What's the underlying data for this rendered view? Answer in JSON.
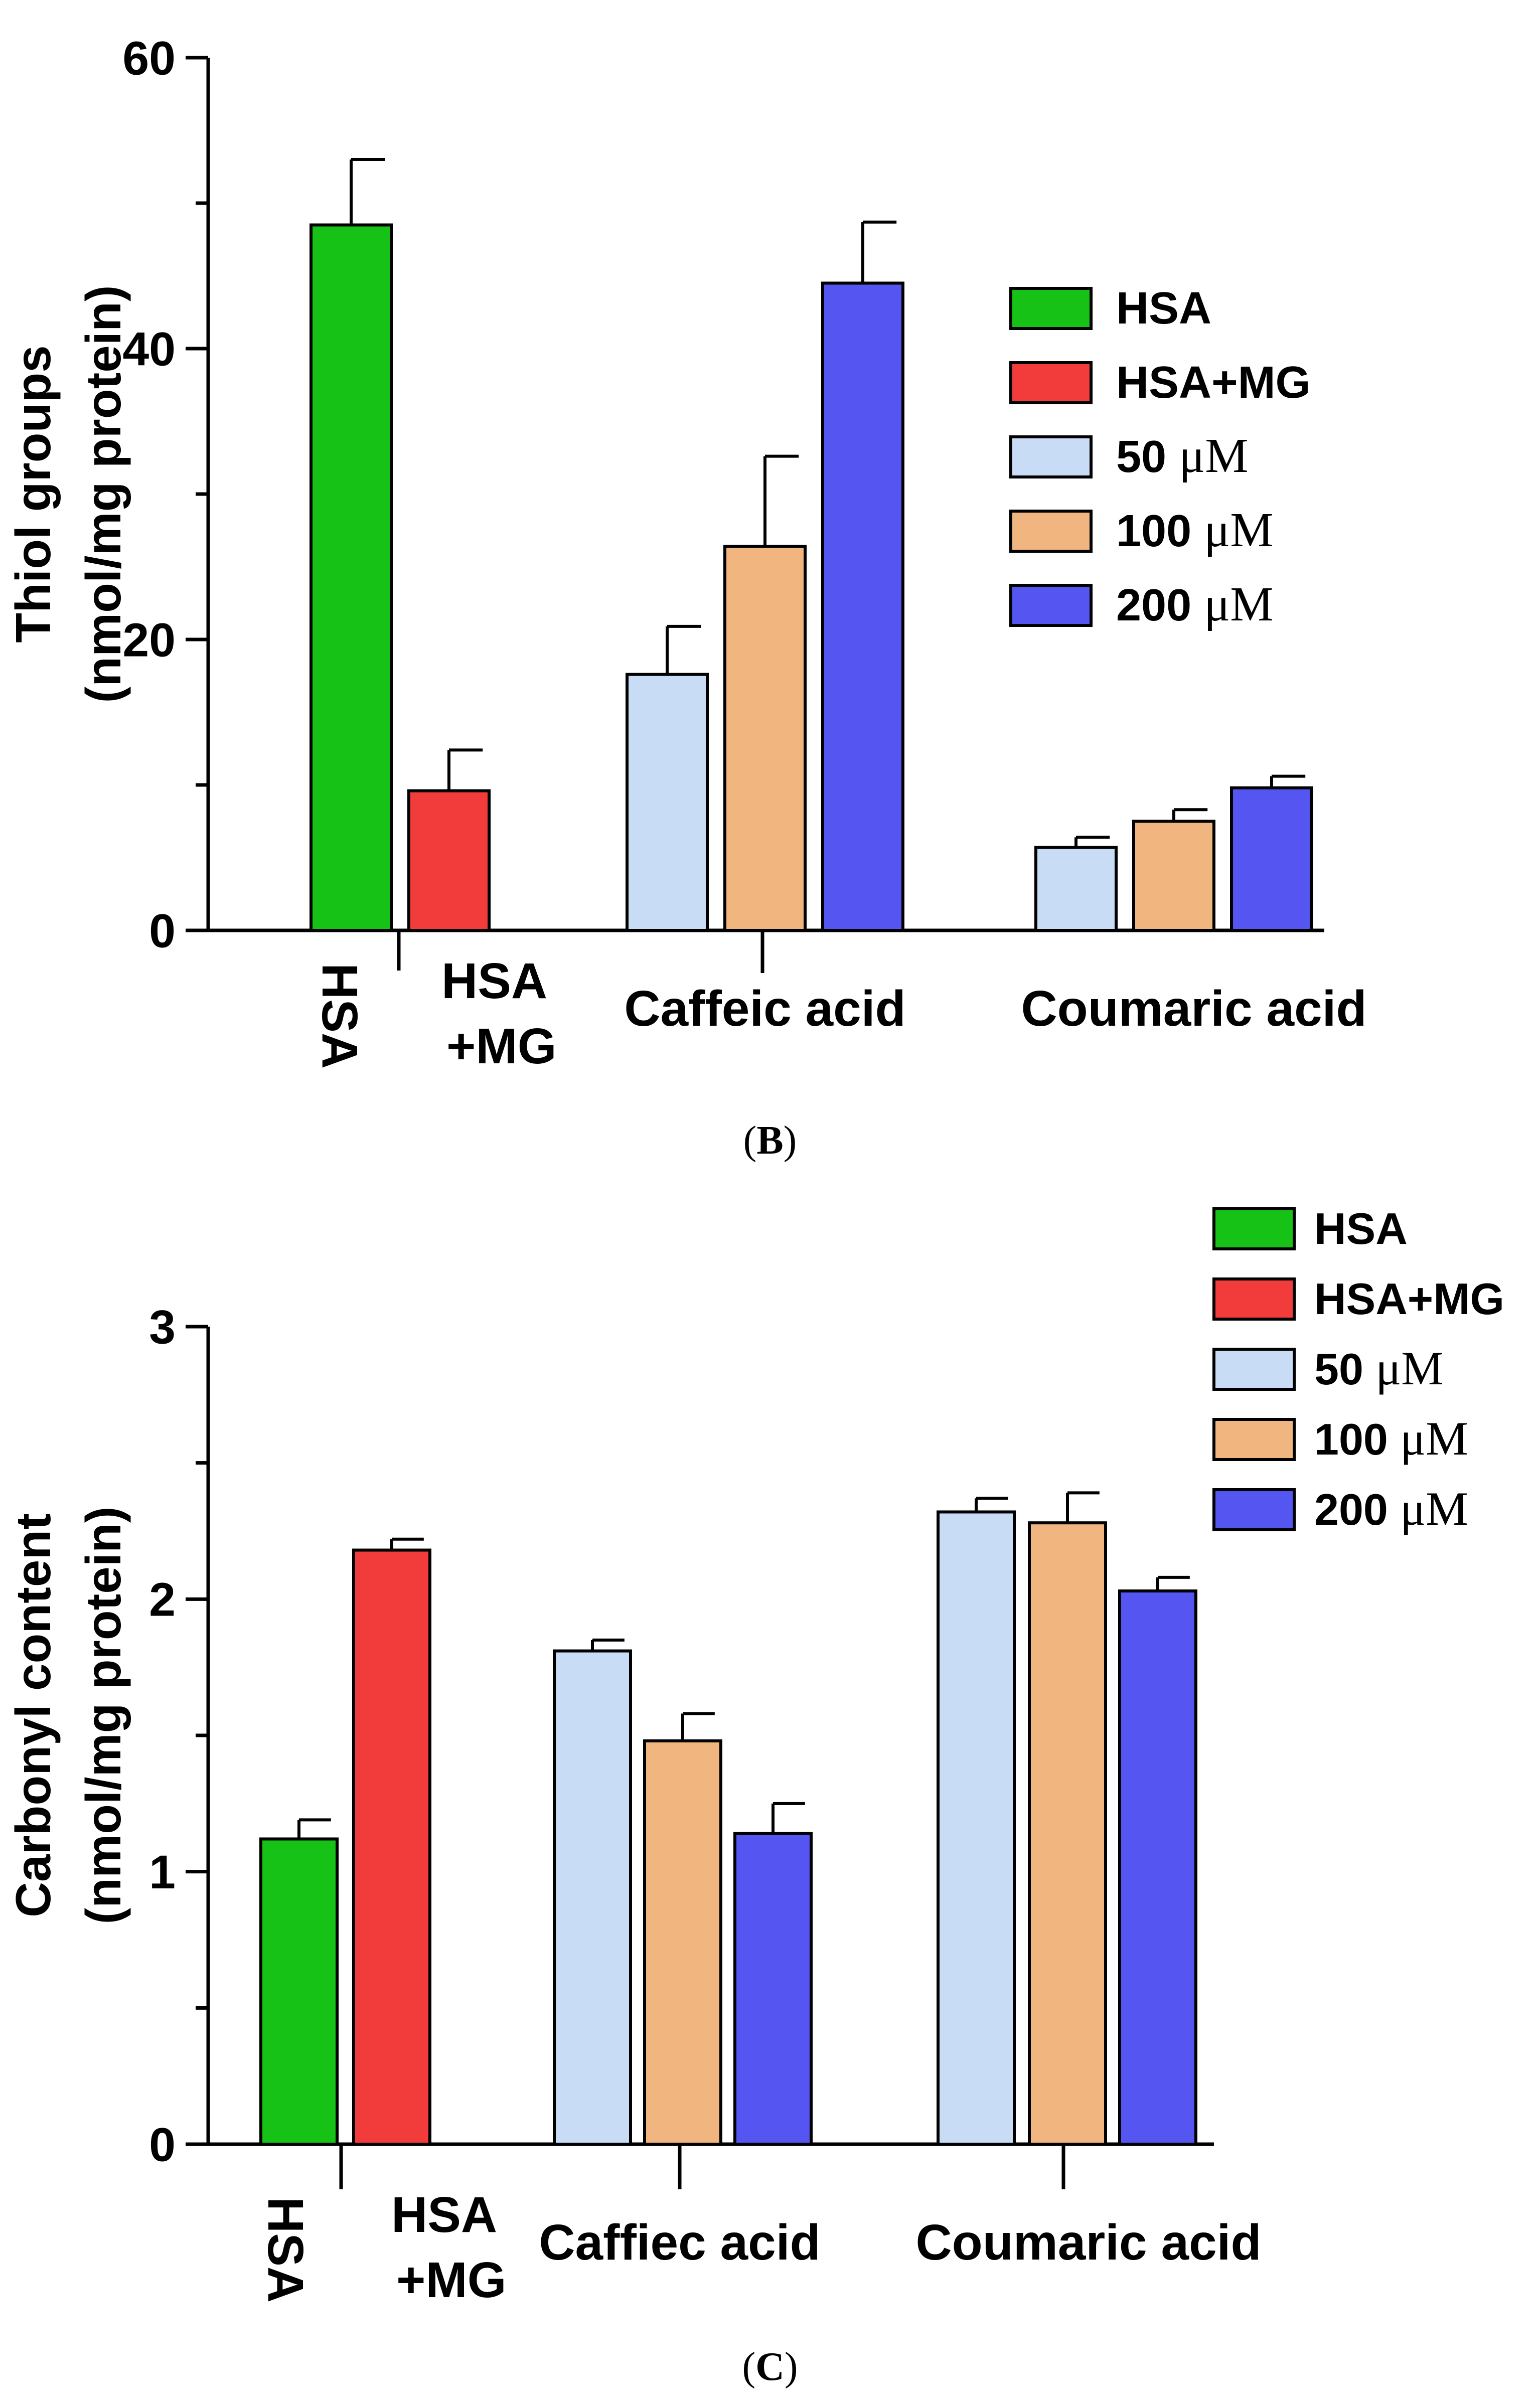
{
  "chart_data": [
    {
      "type": "bar",
      "panel": "(B)",
      "ylabel_line1": "Thiol groups",
      "ylabel_line2": "(nmol/mg protein)",
      "ylim": [
        0,
        60
      ],
      "yticks": [
        "0",
        "20",
        "40",
        "60"
      ],
      "tick_values": [
        0,
        20,
        40,
        60
      ],
      "legend": [
        "HSA",
        "HSA+MG",
        "50 μM",
        "100 μM",
        "200 μM"
      ],
      "legend_position": "right",
      "colors": [
        "#17c217",
        "#f23c3c",
        "#c8dcf6",
        "#f1b57f",
        "#5555f2"
      ],
      "categories": [
        "HSA",
        "HSA +MG",
        "Caffeic acid",
        "Coumaric acid"
      ],
      "category_lines": [
        [
          "HSA"
        ],
        [
          "HSA",
          "+MG"
        ],
        [
          "Caffeic acid"
        ],
        [
          "Coumaric acid"
        ]
      ],
      "bars": [
        {
          "category": "HSA",
          "series": "HSA",
          "value": 48.5,
          "error": 4.5
        },
        {
          "category": "HSA +MG",
          "series": "HSA+MG",
          "value": 9.6,
          "error": 2.8
        },
        {
          "category": "Caffeic acid",
          "series": "50 μM",
          "value": 17.6,
          "error": 3.3
        },
        {
          "category": "Caffeic acid",
          "series": "100 μM",
          "value": 26.4,
          "error": 6.2
        },
        {
          "category": "Caffeic acid",
          "series": "200 μM",
          "value": 44.5,
          "error": 4.2
        },
        {
          "category": "Coumaric acid",
          "series": "50 μM",
          "value": 5.7,
          "error": 0.7
        },
        {
          "category": "Coumaric acid",
          "series": "100 μM",
          "value": 7.5,
          "error": 0.8
        },
        {
          "category": "Coumaric acid",
          "series": "200 μM",
          "value": 9.8,
          "error": 0.8
        }
      ]
    },
    {
      "type": "bar",
      "panel": "(C)",
      "ylabel_line1": "Carbonyl content",
      "ylabel_line2": "(nmol/mg protein)",
      "ylim": [
        0,
        3
      ],
      "yticks": [
        "0",
        "1",
        "2",
        "3"
      ],
      "tick_values": [
        0,
        1,
        2,
        3
      ],
      "legend": [
        "HSA",
        "HSA+MG",
        "50 μM",
        "100 μM",
        "200 μM"
      ],
      "legend_position": "top-right",
      "colors": [
        "#17c217",
        "#f23c3c",
        "#c8dcf6",
        "#f1b57f",
        "#5555f2"
      ],
      "categories": [
        "HSA",
        "HSA +MG",
        "Caffiec acid",
        "Coumaric acid"
      ],
      "category_lines": [
        [
          "HSA"
        ],
        [
          "HSA",
          "+MG"
        ],
        [
          "Caffiec acid"
        ],
        [
          "Coumaric acid"
        ]
      ],
      "bars": [
        {
          "category": "HSA",
          "series": "HSA",
          "value": 1.12,
          "error": 0.07
        },
        {
          "category": "HSA +MG",
          "series": "HSA+MG",
          "value": 2.18,
          "error": 0.04
        },
        {
          "category": "Caffiec acid",
          "series": "50 μM",
          "value": 1.81,
          "error": 0.04
        },
        {
          "category": "Caffiec acid",
          "series": "100 μM",
          "value": 1.48,
          "error": 0.1
        },
        {
          "category": "Caffiec acid",
          "series": "200 μM",
          "value": 1.14,
          "error": 0.11
        },
        {
          "category": "Coumaric acid",
          "series": "50 μM",
          "value": 2.32,
          "error": 0.05
        },
        {
          "category": "Coumaric acid",
          "series": "100 μM",
          "value": 2.28,
          "error": 0.11
        },
        {
          "category": "Coumaric acid",
          "series": "200 μM",
          "value": 2.03,
          "error": 0.05
        }
      ]
    }
  ]
}
